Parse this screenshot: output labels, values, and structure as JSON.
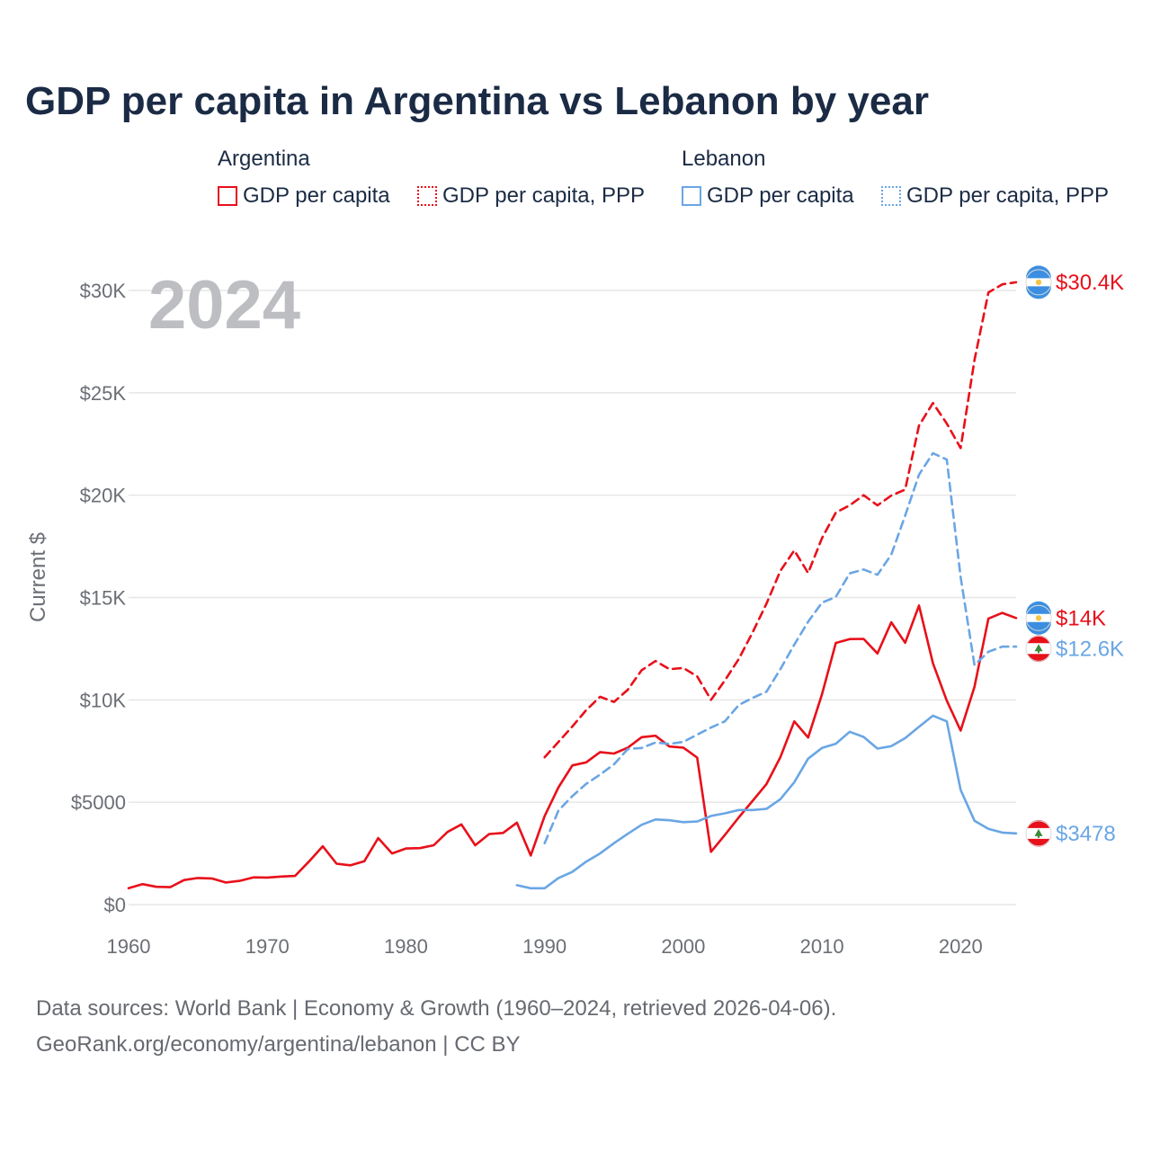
{
  "title": "GDP per capita in Argentina vs Lebanon by year",
  "year_watermark": "2024",
  "legend": {
    "argentina": {
      "name": "Argentina",
      "gdp": "GDP per capita",
      "ppp": "GDP per capita, PPP"
    },
    "lebanon": {
      "name": "Lebanon",
      "gdp": "GDP per capita",
      "ppp": "GDP per capita, PPP"
    }
  },
  "colors": {
    "argentina": "#e8101a",
    "lebanon": "#6aa6e4",
    "grid": "#e6e6e6"
  },
  "footer": {
    "line1": "Data sources: World Bank | Economy & Growth (1960–2024, retrieved 2026-04-06).",
    "line2": "GeoRank.org/economy/argentina/lebanon | CC BY"
  },
  "flags": {
    "argentina": "argentina-flag-icon",
    "lebanon": "lebanon-flag-icon"
  },
  "chart_data": {
    "type": "line",
    "title": "GDP per capita in Argentina vs Lebanon by year",
    "xlabel": "",
    "ylabel": "Current $",
    "xlim": [
      1960,
      2024
    ],
    "ylim": [
      0,
      30000
    ],
    "x_ticks": [
      1960,
      1970,
      1980,
      1990,
      2000,
      2010,
      2020
    ],
    "y_ticks": [
      0,
      5000,
      10000,
      15000,
      20000,
      25000,
      30000
    ],
    "y_tick_labels": [
      "$0",
      "$5000",
      "$10K",
      "$15K",
      "$20K",
      "$25K",
      "$30K"
    ],
    "grid": true,
    "series": [
      {
        "name": "Argentina GDP per capita",
        "country": "argentina",
        "style": "solid",
        "end_label": "$14K",
        "x": [
          1960,
          1961,
          1962,
          1963,
          1964,
          1965,
          1966,
          1967,
          1968,
          1969,
          1970,
          1971,
          1972,
          1973,
          1974,
          1975,
          1976,
          1977,
          1978,
          1979,
          1980,
          1981,
          1982,
          1983,
          1984,
          1985,
          1986,
          1987,
          1988,
          1989,
          1990,
          1991,
          1992,
          1993,
          1994,
          1995,
          1996,
          1997,
          1998,
          1999,
          2000,
          2001,
          2002,
          2003,
          2004,
          2005,
          2006,
          2007,
          2008,
          2009,
          2010,
          2011,
          2012,
          2013,
          2014,
          2015,
          2016,
          2017,
          2018,
          2019,
          2020,
          2021,
          2022,
          2023,
          2024
        ],
        "values": [
          800,
          1000,
          870,
          850,
          1200,
          1300,
          1280,
          1080,
          1160,
          1330,
          1320,
          1370,
          1400,
          2100,
          2850,
          2000,
          1920,
          2120,
          3250,
          2500,
          2740,
          2760,
          2900,
          3550,
          3920,
          2900,
          3450,
          3500,
          4000,
          2400,
          4330,
          5730,
          6800,
          6950,
          7450,
          7380,
          7670,
          8180,
          8250,
          7720,
          7670,
          7180,
          2580,
          3400,
          4260,
          5070,
          5890,
          7200,
          8950,
          8160,
          10270,
          12780,
          12970,
          12980,
          12270,
          13790,
          12790,
          14610,
          11790,
          9960,
          8500,
          10640,
          13970,
          14250,
          14000
        ]
      },
      {
        "name": "Argentina GDP per capita, PPP",
        "country": "argentina",
        "style": "dashed",
        "end_label": "$30.4K",
        "x": [
          1990,
          1991,
          1992,
          1993,
          1994,
          1995,
          1996,
          1997,
          1998,
          1999,
          2000,
          2001,
          2002,
          2003,
          2004,
          2005,
          2006,
          2007,
          2008,
          2009,
          2010,
          2011,
          2012,
          2013,
          2014,
          2015,
          2016,
          2017,
          2018,
          2019,
          2020,
          2021,
          2022,
          2023,
          2024
        ],
        "values": [
          7200,
          7950,
          8700,
          9500,
          10150,
          9900,
          10500,
          11450,
          11900,
          11500,
          11560,
          11150,
          10000,
          10950,
          12000,
          13300,
          14700,
          16300,
          17300,
          16200,
          17900,
          19150,
          19500,
          20000,
          19500,
          19980,
          20270,
          23400,
          24500,
          23500,
          22300,
          26600,
          29900,
          30300,
          30400
        ]
      },
      {
        "name": "Lebanon GDP per capita",
        "country": "lebanon",
        "style": "solid",
        "end_label": "$3478",
        "x": [
          1988,
          1989,
          1990,
          1991,
          1992,
          1993,
          1994,
          1995,
          1996,
          1997,
          1998,
          1999,
          2000,
          2001,
          2002,
          2003,
          2004,
          2005,
          2006,
          2007,
          2008,
          2009,
          2010,
          2011,
          2012,
          2013,
          2014,
          2015,
          2016,
          2017,
          2018,
          2019,
          2020,
          2021,
          2022,
          2023,
          2024
        ],
        "values": [
          950,
          800,
          800,
          1300,
          1600,
          2100,
          2500,
          3000,
          3460,
          3900,
          4160,
          4120,
          4030,
          4060,
          4330,
          4460,
          4620,
          4620,
          4680,
          5150,
          5980,
          7130,
          7650,
          7860,
          8440,
          8190,
          7620,
          7740,
          8130,
          8690,
          9230,
          8950,
          5600,
          4100,
          3700,
          3520,
          3478
        ]
      },
      {
        "name": "Lebanon GDP per capita, PPP",
        "country": "lebanon",
        "style": "dashed",
        "end_label": "$12.6K",
        "x": [
          1990,
          1991,
          1992,
          1993,
          1994,
          1995,
          1996,
          1997,
          1998,
          1999,
          2000,
          2001,
          2002,
          2003,
          2004,
          2005,
          2006,
          2007,
          2008,
          2009,
          2010,
          2011,
          2012,
          2013,
          2014,
          2015,
          2016,
          2017,
          2018,
          2019,
          2020,
          2021,
          2022,
          2023,
          2024
        ],
        "values": [
          3000,
          4600,
          5300,
          5900,
          6350,
          6850,
          7600,
          7650,
          7920,
          7850,
          7950,
          8300,
          8650,
          8950,
          9750,
          10100,
          10400,
          11500,
          12700,
          13820,
          14750,
          15030,
          16180,
          16370,
          16110,
          17100,
          19000,
          21000,
          22050,
          21740,
          16000,
          11700,
          12350,
          12600,
          12600
        ]
      }
    ]
  }
}
